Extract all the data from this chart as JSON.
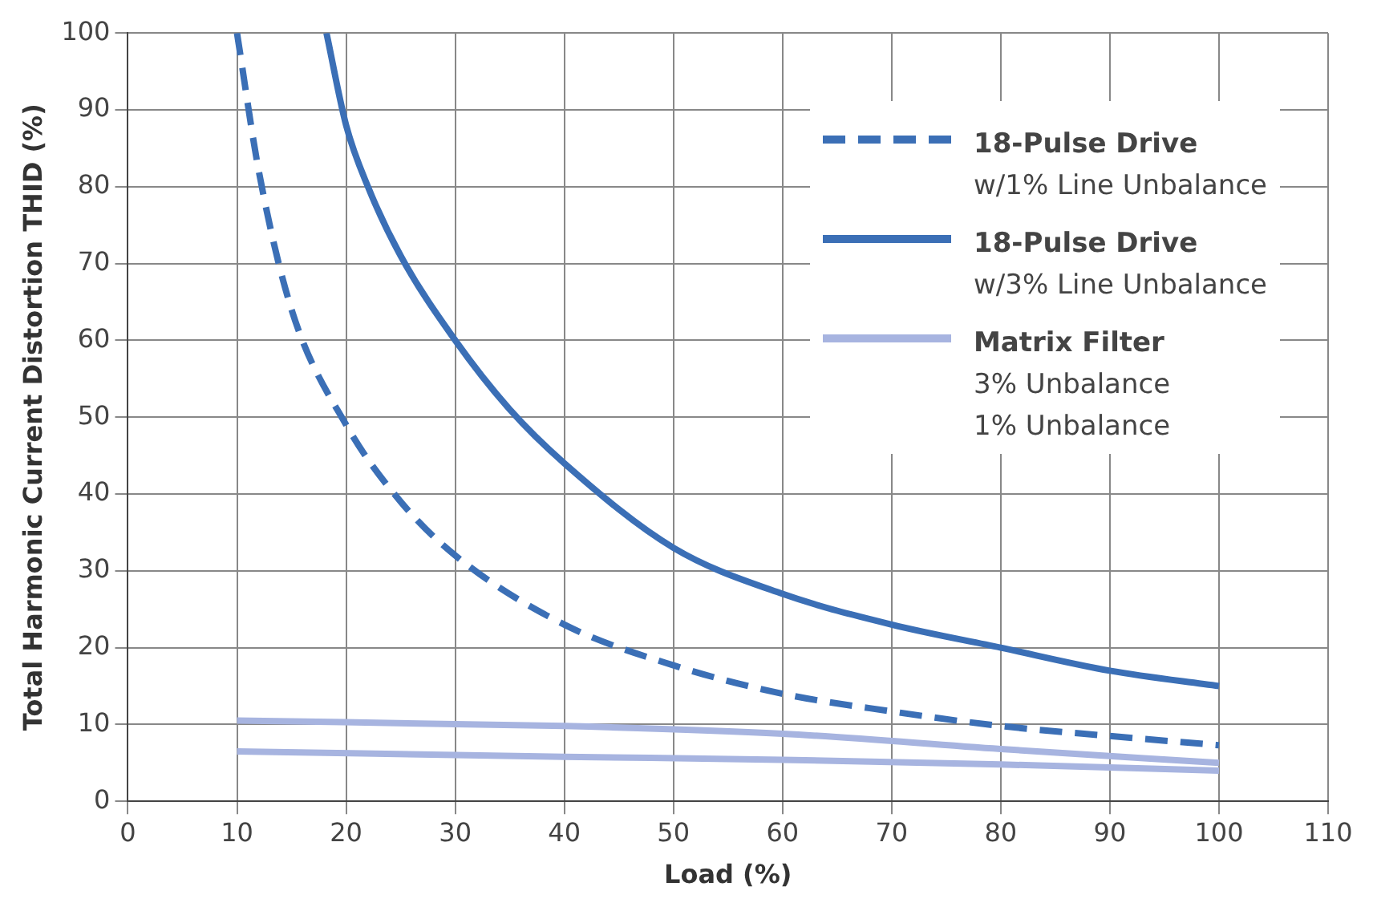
{
  "chart_data": {
    "type": "line",
    "xlabel": "Load (%)",
    "ylabel": "Total Harmonic Current Distortion THID (%)",
    "xlim": [
      0,
      110
    ],
    "xticks": [
      0,
      10,
      20,
      30,
      40,
      50,
      60,
      70,
      80,
      90,
      100,
      110
    ],
    "ylim": [
      0,
      100
    ],
    "yticks": [
      0,
      10,
      20,
      30,
      40,
      50,
      60,
      70,
      80,
      90,
      100
    ],
    "grid": true,
    "legend": "top right",
    "marker": "none",
    "series": [
      {
        "name": "18-Pulse Drive\nw/1% Line Unbalance",
        "color": "#3b6fb6",
        "line_style": "dashed",
        "x": [
          10,
          12,
          15,
          20,
          25,
          30,
          40,
          50,
          60,
          70,
          80,
          90,
          100
        ],
        "values": [
          100,
          82,
          64,
          49,
          39,
          32,
          23,
          17.7,
          14,
          11.7,
          9.8,
          8.5,
          7.3
        ]
      },
      {
        "name": "18-Pulse Drive\nw/3% Line Unbalance",
        "color": "#3b6fb6",
        "line_style": "solid",
        "x": [
          18.2,
          20,
          22,
          25,
          30,
          35,
          40,
          50,
          60,
          70,
          80,
          90,
          100
        ],
        "values": [
          100,
          88,
          80,
          71,
          60,
          51,
          44,
          33,
          27,
          23,
          20,
          17,
          15
        ]
      },
      {
        "name": "Matrix Filter\n3% Unbalance\n1% Unbalance",
        "color": "#a7b4e0",
        "line_style": "solid",
        "x": [
          10,
          40,
          60,
          80,
          100
        ],
        "values": [
          10.5,
          9.8,
          8.8,
          6.8,
          5
        ]
      },
      {
        "color": "#a7b4e0",
        "line_style": "solid",
        "x": [
          10,
          40,
          60,
          80,
          100
        ],
        "values": [
          6.5,
          5.8,
          5.4,
          4.8,
          4
        ]
      }
    ]
  }
}
